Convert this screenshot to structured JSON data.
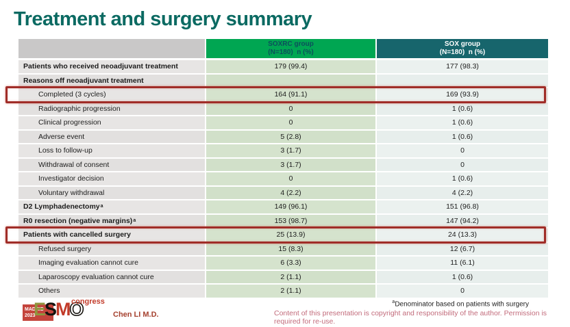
{
  "slide": {
    "title": "Treatment and surgery summary",
    "presenter": "Chen LI M.D.",
    "footnote_sup": "a",
    "footnote_text": "Denominator based on patients with surgery",
    "copyright": "Content of this presentation is copyright and responsibility of the author. Permission is required for re-use."
  },
  "logo": {
    "location_line1": "MADRID",
    "location_line2": "2023",
    "letter_e": "E",
    "letter_s": "S",
    "letter_m": "M",
    "letter_o": "O",
    "congress": "congress"
  },
  "table": {
    "headers": {
      "col2_line1": "SOXRC group",
      "col2_line2": "(N=180)  n (%)",
      "col3_line1": "SOX group",
      "col3_line2": "(N=180)  n (%)"
    },
    "rows": [
      {
        "label": "Patients who received neoadjuvant treatment",
        "soxrc": "179 (99.4)",
        "sox": "177 (98.3)",
        "bold": true,
        "indent": false,
        "highlight": false
      },
      {
        "label": "Reasons off neoadjuvant treatment",
        "soxrc": "",
        "sox": "",
        "bold": true,
        "indent": false,
        "highlight": false
      },
      {
        "label": "Completed (3 cycles)",
        "soxrc": "164 (91.1)",
        "sox": "169 (93.9)",
        "bold": false,
        "indent": true,
        "highlight": true
      },
      {
        "label": "Radiographic progression",
        "soxrc": "0",
        "sox": "1 (0.6)",
        "bold": false,
        "indent": true,
        "highlight": false
      },
      {
        "label": "Clinical progression",
        "soxrc": "0",
        "sox": "1 (0.6)",
        "bold": false,
        "indent": true,
        "highlight": false
      },
      {
        "label": "Adverse event",
        "soxrc": "5 (2.8)",
        "sox": "1 (0.6)",
        "bold": false,
        "indent": true,
        "highlight": false
      },
      {
        "label": "Loss to follow-up",
        "soxrc": "3 (1.7)",
        "sox": "0",
        "bold": false,
        "indent": true,
        "highlight": false
      },
      {
        "label": "Withdrawal of consent",
        "soxrc": "3 (1.7)",
        "sox": "0",
        "bold": false,
        "indent": true,
        "highlight": false
      },
      {
        "label": "Investigator decision",
        "soxrc": "0",
        "sox": "1 (0.6)",
        "bold": false,
        "indent": true,
        "highlight": false
      },
      {
        "label": "Voluntary withdrawal",
        "soxrc": "4 (2.2)",
        "sox": "4 (2.2)",
        "bold": false,
        "indent": true,
        "highlight": false
      },
      {
        "label": "D2 Lymphadenectomy",
        "sup": "a",
        "soxrc": "149 (96.1)",
        "sox": "151 (96.8)",
        "bold": true,
        "indent": false,
        "highlight": false
      },
      {
        "label": "R0 resection (negative margins)",
        "sup": "a",
        "soxrc": "153 (98.7)",
        "sox": "147 (94.2)",
        "bold": true,
        "indent": false,
        "highlight": false
      },
      {
        "label": "Patients with cancelled surgery",
        "soxrc": "25 (13.9)",
        "sox": "24 (13.3)",
        "bold": true,
        "indent": false,
        "highlight": true
      },
      {
        "label": "Refused surgery",
        "soxrc": "15 (8.3)",
        "sox": "12 (6.7)",
        "bold": false,
        "indent": true,
        "highlight": false
      },
      {
        "label": "Imaging evaluation cannot cure",
        "soxrc": "6 (3.3)",
        "sox": "11 (6.1)",
        "bold": false,
        "indent": true,
        "highlight": false
      },
      {
        "label": "Laparoscopy evaluation cannot cure",
        "soxrc": "2 (1.1)",
        "sox": "1 (0.6)",
        "bold": false,
        "indent": true,
        "highlight": false
      },
      {
        "label": "Others",
        "soxrc": "2 (1.1)",
        "sox": "0",
        "bold": false,
        "indent": true,
        "highlight": false
      }
    ]
  },
  "colors": {
    "title_teal": "#0b6a62",
    "header_green": "#00a652",
    "header_teal": "#17656c",
    "highlight_red": "#a02d28",
    "copyright_pink": "#c26b7b"
  }
}
